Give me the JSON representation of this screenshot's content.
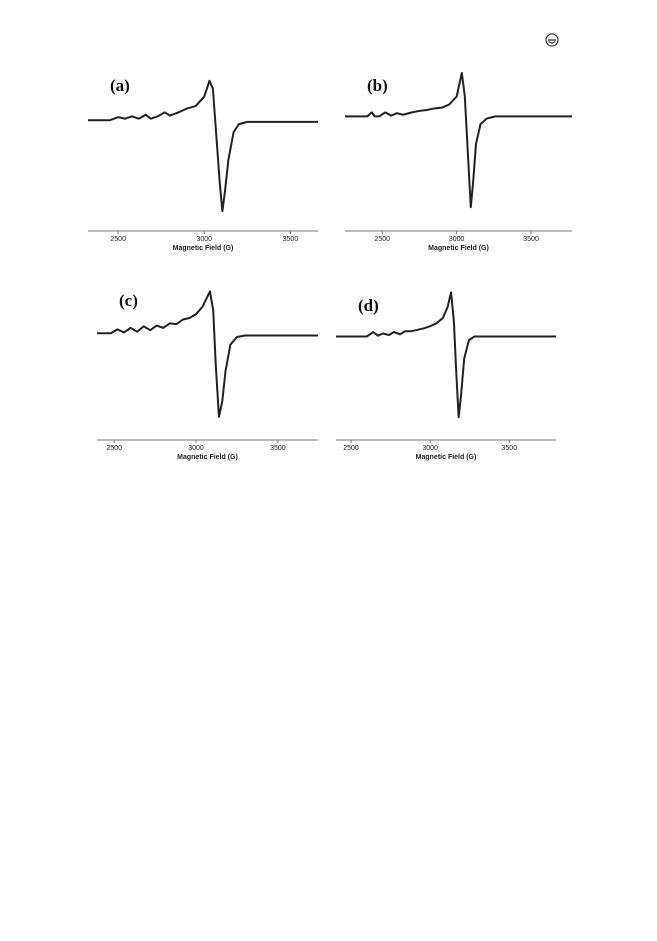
{
  "chart_data": [
    {
      "type": "line",
      "title": "(a)",
      "x_label": "Magnetic Field (G)",
      "color": "#222222",
      "x": [
        2325,
        2450,
        2500,
        2540,
        2580,
        2620,
        2660,
        2690,
        2730,
        2770,
        2800,
        2850,
        2900,
        2950,
        3000,
        3030,
        3050,
        3070,
        3090,
        3105,
        3120,
        3140,
        3170,
        3200,
        3250,
        3660
      ],
      "values": [
        0.2,
        0.2,
        0.24,
        0.22,
        0.25,
        0.22,
        0.27,
        0.22,
        0.25,
        0.3,
        0.26,
        0.3,
        0.35,
        0.38,
        0.5,
        0.7,
        0.6,
        0.0,
        -0.6,
        -0.95,
        -0.7,
        -0.3,
        0.05,
        0.15,
        0.18,
        0.18
      ],
      "xlim": [
        2325,
        3660
      ],
      "xticks": [
        2500,
        3000,
        3500
      ],
      "ylim": [
        -1.1,
        0.9
      ]
    },
    {
      "type": "line",
      "title": "(b)",
      "x_label": "Magnetic Field (G)",
      "color": "#222222",
      "x": [
        2250,
        2400,
        2430,
        2450,
        2480,
        2520,
        2560,
        2600,
        2640,
        2700,
        2750,
        2800,
        2850,
        2900,
        2950,
        3000,
        3035,
        3055,
        3075,
        3095,
        3110,
        3130,
        3160,
        3200,
        3260,
        3775
      ],
      "values": [
        0.25,
        0.25,
        0.3,
        0.25,
        0.25,
        0.3,
        0.26,
        0.29,
        0.27,
        0.3,
        0.32,
        0.33,
        0.35,
        0.36,
        0.4,
        0.5,
        0.8,
        0.5,
        -0.2,
        -0.9,
        -0.6,
        -0.1,
        0.15,
        0.22,
        0.25,
        0.25
      ],
      "xlim": [
        2250,
        3775
      ],
      "xticks": [
        2500,
        3000,
        3500
      ],
      "ylim": [
        -1.1,
        0.9
      ]
    },
    {
      "type": "line",
      "title": "(c)",
      "x_label": "Magnetic Field (G)",
      "color": "#222222",
      "x": [
        2395,
        2480,
        2520,
        2560,
        2600,
        2640,
        2680,
        2720,
        2760,
        2800,
        2840,
        2880,
        2920,
        2960,
        3000,
        3040,
        3085,
        3105,
        3120,
        3140,
        3160,
        3180,
        3210,
        3250,
        3300,
        3745
      ],
      "values": [
        0.2,
        0.2,
        0.25,
        0.21,
        0.27,
        0.22,
        0.29,
        0.24,
        0.3,
        0.27,
        0.33,
        0.32,
        0.38,
        0.4,
        0.45,
        0.55,
        0.75,
        0.5,
        -0.2,
        -0.9,
        -0.7,
        -0.3,
        0.05,
        0.15,
        0.17,
        0.17
      ],
      "xlim": [
        2395,
        3745
      ],
      "xticks": [
        2500,
        3000,
        3500
      ],
      "ylim": [
        -1.1,
        0.9
      ]
    },
    {
      "type": "line",
      "title": "(d)",
      "x_label": "Magnetic Field (G)",
      "color": "#222222",
      "x": [
        2405,
        2600,
        2640,
        2670,
        2700,
        2740,
        2770,
        2810,
        2840,
        2880,
        2920,
        2960,
        3000,
        3040,
        3080,
        3110,
        3132,
        3150,
        3165,
        3180,
        3195,
        3215,
        3245,
        3280,
        3330,
        3795
      ],
      "values": [
        0.2,
        0.2,
        0.26,
        0.21,
        0.24,
        0.22,
        0.26,
        0.23,
        0.27,
        0.27,
        0.29,
        0.31,
        0.34,
        0.38,
        0.45,
        0.6,
        0.8,
        0.4,
        -0.3,
        -0.9,
        -0.6,
        -0.1,
        0.15,
        0.2,
        0.2,
        0.2
      ],
      "xlim": [
        2405,
        3795
      ],
      "xticks": [
        2500,
        3000,
        3500
      ],
      "ylim": [
        -1.1,
        0.9
      ]
    }
  ]
}
